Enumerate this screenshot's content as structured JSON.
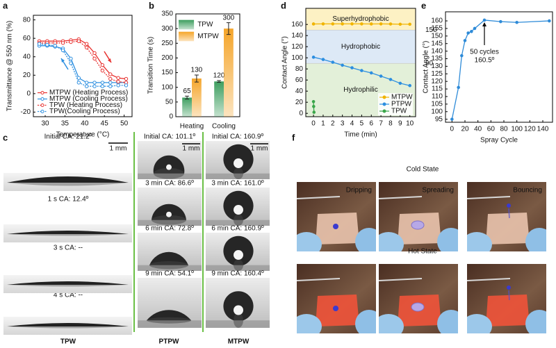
{
  "panel_labels": [
    "a",
    "b",
    "c",
    "d",
    "e",
    "f"
  ],
  "chart_data": [
    {
      "type": "line",
      "xlabel": "Temperature (°C)",
      "ylabel": "Transmittance @ 550 nm (%)",
      "xlim": [
        27,
        52
      ],
      "xticks": [
        30,
        35,
        40,
        45,
        50
      ],
      "ylim": [
        -25,
        85
      ],
      "yticks": [
        -20,
        0,
        20,
        40,
        60,
        80
      ],
      "x": [
        28.5,
        30.5,
        32.5,
        34.5,
        36.5,
        38.5,
        40.5,
        42.5,
        44.5,
        46.5,
        48.5,
        50.5
      ],
      "legend": "lower left",
      "series": [
        {
          "name": "MTPW (Heating Process)",
          "color": "#e8312f",
          "dash": false,
          "values": [
            57,
            57,
            57,
            57,
            58,
            59,
            54,
            44,
            31,
            21,
            17,
            16
          ]
        },
        {
          "name": "MTPW (Cooling Process)",
          "color": "#2d8fe0",
          "dash": false,
          "values": [
            52,
            52,
            51,
            49,
            38,
            17,
            12,
            12,
            12,
            12,
            12,
            12
          ]
        },
        {
          "name": "TPW (Heating Process)",
          "color": "#e8312f",
          "dash": true,
          "values": [
            55,
            55,
            55,
            55,
            56,
            57,
            50,
            38,
            25,
            16,
            13,
            12
          ]
        },
        {
          "name": "TPW(Cooling Process)",
          "color": "#2d8fe0",
          "dash": true,
          "values": [
            54,
            53,
            52,
            47,
            33,
            12,
            8,
            8,
            8,
            8,
            9,
            9
          ]
        }
      ]
    },
    {
      "type": "bar",
      "ylabel": "Transition Time (s)",
      "categories": [
        "Heating",
        "Cooling"
      ],
      "ylim": [
        0,
        350
      ],
      "yticks": [
        0,
        50,
        100,
        150,
        200,
        250,
        300,
        350
      ],
      "legend": "upper left",
      "series": [
        {
          "name": "TPW",
          "color": "#3d9e5f",
          "values": [
            65,
            120
          ],
          "errors": [
            5,
            3
          ]
        },
        {
          "name": "MTPW",
          "color": "#f5a52a",
          "values": [
            130,
            300
          ],
          "errors": [
            12,
            20
          ]
        }
      ]
    },
    {
      "type": "line",
      "xlabel": "Time (min)",
      "ylabel": "Contact Angle (°)",
      "xlim": [
        -0.8,
        10.6
      ],
      "xticks": [
        0,
        1,
        2,
        3,
        4,
        5,
        6,
        7,
        8,
        9,
        10
      ],
      "ylim": [
        -6,
        189
      ],
      "yticks": [
        0,
        20,
        40,
        60,
        80,
        100,
        120,
        140,
        160
      ],
      "thresholds": [
        90,
        150
      ],
      "regions": [
        {
          "name": "Hydrophilic",
          "color": "#e3f0d9",
          "text_color": "#3f9b35"
        },
        {
          "name": "Hydrophobic",
          "color": "#dde9f6",
          "text_color": "#2f7fd0"
        },
        {
          "name": "Superhydrophobic",
          "color": "#fdf1c4",
          "text_color": "#e0a000"
        }
      ],
      "legend": "lower right",
      "series": [
        {
          "name": "MTPW",
          "color": "#f0b400",
          "x": [
            0,
            1,
            2,
            3,
            4,
            5,
            6,
            7,
            8,
            9,
            10
          ],
          "values": [
            160.9,
            161,
            161,
            161,
            161,
            161,
            160.9,
            161,
            160.8,
            160.4,
            160.4
          ]
        },
        {
          "name": "PTPW",
          "color": "#2d8fe0",
          "x": [
            0,
            1,
            2,
            3,
            4,
            5,
            6,
            7,
            8,
            9,
            10
          ],
          "values": [
            101.1,
            97,
            92,
            86.6,
            82,
            77,
            72.8,
            67,
            61,
            54.1,
            50
          ]
        },
        {
          "name": "TPW",
          "color": "#3aa64a",
          "x": [
            0,
            0.0167,
            0.05
          ],
          "values": [
            21.2,
            12.4,
            2
          ]
        }
      ]
    },
    {
      "type": "line",
      "xlabel": "Spray Cycle",
      "ylabel": "Contact Angle (°)",
      "xlim": [
        -10,
        155
      ],
      "xticks": [
        0,
        20,
        40,
        60,
        80,
        100,
        120,
        140
      ],
      "ylim": [
        93,
        166
      ],
      "yticks": [
        95,
        100,
        105,
        110,
        115,
        120,
        125,
        130,
        135,
        140,
        145,
        150,
        155,
        160
      ],
      "annotation": [
        "50 cycles",
        "160.5º"
      ],
      "series": [
        {
          "name": "MTPW",
          "color": "#2e8bd8",
          "x": [
            0,
            10,
            15,
            20,
            25,
            30,
            35,
            50,
            75,
            100,
            150
          ],
          "values": [
            95,
            116,
            137,
            147,
            152,
            153,
            155,
            160.5,
            159.5,
            159,
            160
          ]
        }
      ]
    }
  ],
  "panel_c": {
    "columns": [
      {
        "name": "TPW",
        "scale": "1 mm",
        "captions": [
          "Initial CA: 21.2º",
          "1 s CA: 12.4º",
          "3 s CA: --",
          "4 s CA: --"
        ]
      },
      {
        "name": "PTPW",
        "scale": "1 mm",
        "captions": [
          "Initial CA: 101.1º",
          "3 min CA: 86.6º",
          "6 min CA: 72.8º",
          "9 min CA: 54.1º"
        ]
      },
      {
        "name": "MTPW",
        "scale": "1 mm",
        "captions": [
          "Initial CA: 160.9º",
          "3 min CA: 161.0º",
          "6 min CA: 160.9º",
          "9 min CA: 160.4º"
        ]
      }
    ]
  },
  "panel_f": {
    "rows": [
      {
        "name": "Cold State",
        "color": "#1e8ff0",
        "captions": [
          "Dripping",
          "Spreading",
          "Bouncing"
        ]
      },
      {
        "name": "Hot State",
        "color": "#e8352f"
      }
    ]
  }
}
